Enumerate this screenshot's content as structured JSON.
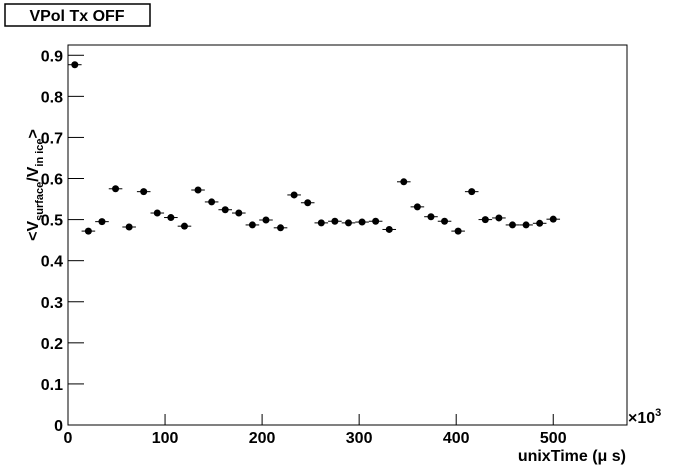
{
  "chart_data": {
    "type": "scatter",
    "title": "VPol Tx OFF",
    "xlabel": "unixTime (μ s)",
    "ylabel": [
      "<V",
      "surface",
      "/V",
      "in ice",
      ">"
    ],
    "x_multiplier": {
      "base": "×10",
      "exponent": "3"
    },
    "x": [
      7,
      21,
      35,
      49,
      63,
      78,
      92,
      106,
      120,
      134,
      148,
      162,
      176,
      190,
      204,
      219,
      233,
      247,
      261,
      275,
      289,
      303,
      317,
      331,
      346,
      360,
      374,
      388,
      402,
      416,
      430,
      444,
      458,
      472,
      486,
      500
    ],
    "values": [
      0.877,
      0.472,
      0.495,
      0.575,
      0.482,
      0.568,
      0.516,
      0.505,
      0.484,
      0.572,
      0.543,
      0.524,
      0.516,
      0.487,
      0.499,
      0.48,
      0.56,
      0.541,
      0.492,
      0.496,
      0.492,
      0.494,
      0.496,
      0.476,
      0.592,
      0.531,
      0.507,
      0.496,
      0.472,
      0.568,
      0.5,
      0.504,
      0.487,
      0.487,
      0.491,
      0.501
    ],
    "x_error": 7,
    "color": "#000000",
    "xlim": [
      0,
      576
    ],
    "ylim": [
      0,
      0.925
    ],
    "xticks": [
      0,
      100,
      200,
      300,
      400,
      500
    ],
    "yticks": [
      0,
      0.1,
      0.2,
      0.3,
      0.4,
      0.5,
      0.6,
      0.7,
      0.8,
      0.9
    ]
  }
}
